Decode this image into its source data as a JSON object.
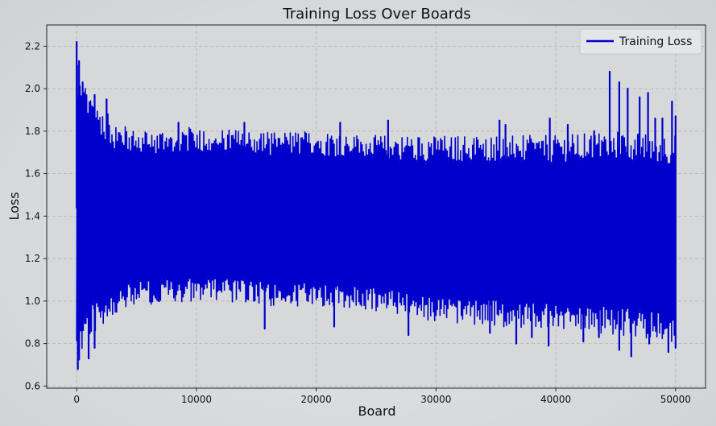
{
  "chart_data": {
    "type": "line",
    "title": "Training Loss Over Boards",
    "xlabel": "Board",
    "ylabel": "Loss",
    "xlim": [
      -2500,
      52500
    ],
    "ylim": [
      0.59,
      2.3
    ],
    "xticks": [
      0,
      10000,
      20000,
      30000,
      40000,
      50000
    ],
    "yticks": [
      0.6,
      0.8,
      1.0,
      1.2,
      1.4,
      1.6,
      1.8,
      2.0,
      2.2
    ],
    "grid": true,
    "legend_position": "top-right",
    "series": [
      {
        "name": "Training Loss",
        "color": "#0000cd",
        "x_range": [
          0,
          50000
        ],
        "description_of_noise": "dense oscillation",
        "envelope": {
          "x": [
            0,
            300,
            600,
            1000,
            2000,
            3000,
            5000,
            10000,
            15000,
            20000,
            25000,
            30000,
            35000,
            40000,
            45000,
            50000
          ],
          "upper": [
            2.22,
            2.05,
            2.03,
            1.98,
            1.93,
            1.85,
            1.8,
            1.82,
            1.8,
            1.8,
            1.78,
            1.78,
            1.78,
            1.78,
            1.8,
            1.78
          ],
          "lower": [
            0.66,
            0.7,
            0.78,
            0.82,
            0.88,
            0.92,
            0.98,
            1.0,
            0.98,
            0.97,
            0.95,
            0.9,
            0.88,
            0.86,
            0.84,
            0.8
          ]
        },
        "spikes_high": [
          [
            0,
            2.22
          ],
          [
            200,
            2.13
          ],
          [
            500,
            2.03
          ],
          [
            1500,
            1.97
          ],
          [
            2500,
            1.95
          ],
          [
            8500,
            1.84
          ],
          [
            14000,
            1.84
          ],
          [
            22000,
            1.84
          ],
          [
            26000,
            1.85
          ],
          [
            35300,
            1.85
          ],
          [
            35800,
            1.83
          ],
          [
            39500,
            1.86
          ],
          [
            41000,
            1.83
          ],
          [
            43200,
            1.8
          ],
          [
            44500,
            2.08
          ],
          [
            45300,
            2.03
          ],
          [
            46000,
            2.0
          ],
          [
            47000,
            1.96
          ],
          [
            47700,
            1.98
          ],
          [
            48300,
            1.86
          ],
          [
            48900,
            1.86
          ],
          [
            49700,
            1.94
          ],
          [
            50000,
            1.87
          ]
        ],
        "spikes_low": [
          [
            100,
            0.68
          ],
          [
            1000,
            0.73
          ],
          [
            1500,
            0.78
          ],
          [
            15700,
            0.87
          ],
          [
            21500,
            0.88
          ],
          [
            27700,
            0.84
          ],
          [
            34500,
            0.85
          ],
          [
            36700,
            0.8
          ],
          [
            38000,
            0.83
          ],
          [
            39400,
            0.79
          ],
          [
            42300,
            0.81
          ],
          [
            43600,
            0.83
          ],
          [
            45300,
            0.77
          ],
          [
            46300,
            0.74
          ],
          [
            47800,
            0.8
          ],
          [
            49400,
            0.76
          ],
          [
            50000,
            0.78
          ]
        ]
      }
    ]
  }
}
